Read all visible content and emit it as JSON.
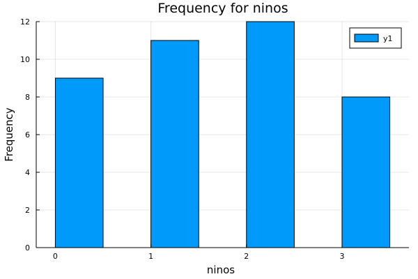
{
  "chart_data": {
    "type": "bar",
    "title": "Frequency for ninos",
    "xlabel": "ninos",
    "ylabel": "Frequency",
    "x": [
      0,
      1,
      2,
      3
    ],
    "x_ticks": [
      "0",
      "1",
      "2",
      "3"
    ],
    "bar_span": 0.5,
    "xlim": [
      -0.2,
      3.7
    ],
    "ylim": [
      0,
      12
    ],
    "y_ticks": [
      "0",
      "2",
      "4",
      "6",
      "8",
      "10",
      "12"
    ],
    "series": [
      {
        "name": "y1",
        "values": [
          9,
          11,
          12,
          8
        ]
      }
    ],
    "grid": true,
    "legend_position": "top-right",
    "colors": {
      "bar": "#009AFA",
      "edge": "#000000"
    }
  }
}
